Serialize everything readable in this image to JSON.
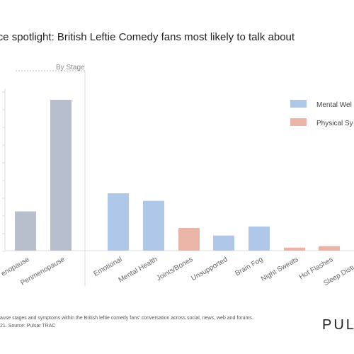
{
  "title": "ence spotlight: British Leftie Comedy fans most likely to talk about",
  "group_label": "By Stage",
  "footnote_line1": "ause stages and symptoms within the British leftie comedy fans' conversation across social, news, web and forums.",
  "footnote_line2": "21. Source: Pulsar TRAC",
  "brand": "PULS",
  "colors": {
    "stage": "#b8bfcc",
    "mental": "#aec6e8",
    "physical": "#eab4a6",
    "axis": "#dddddd",
    "text": "#666666"
  },
  "chart_data": {
    "type": "bar",
    "title": "ence spotlight: British Leftie Comedy fans most likely to talk about",
    "categories": [
      "enopause",
      "Perimenopause",
      "Emotional",
      "Mental Health",
      "Joints/Bones",
      "Unsupported",
      "Brain Fog",
      "Night Sweats",
      "Hot Flashes",
      "Sleep Disturban"
    ],
    "values": [
      26,
      100,
      38,
      33,
      15,
      10,
      16,
      2,
      3,
      0
    ],
    "groups": [
      "stage",
      "stage",
      "mental",
      "mental",
      "physical",
      "mental",
      "mental",
      "physical",
      "physical",
      "physical"
    ],
    "legend": [
      {
        "label": "Mental Wel",
        "group": "mental"
      },
      {
        "label": "Physical Sy",
        "group": "physical"
      }
    ],
    "legend_position": "right",
    "ylim": [
      0,
      107
    ],
    "grid": false
  }
}
